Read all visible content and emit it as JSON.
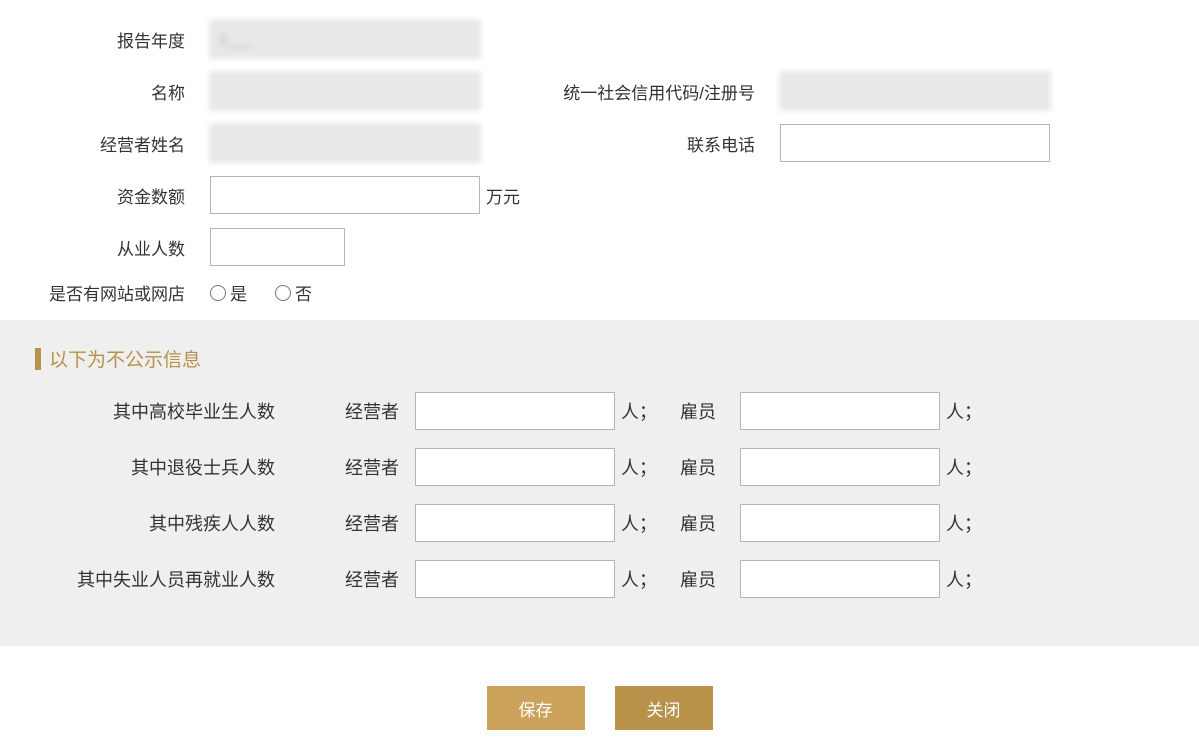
{
  "upper_form": {
    "report_year": {
      "label": "报告年度",
      "value": "2___"
    },
    "name": {
      "label": "名称",
      "value": ""
    },
    "credit_code": {
      "label": "统一社会信用代码/注册号",
      "value": ""
    },
    "operator_name": {
      "label": "经营者姓名",
      "value": ""
    },
    "phone": {
      "label": "联系电话",
      "value": ""
    },
    "capital": {
      "label": "资金数额",
      "value": "",
      "unit": "万元"
    },
    "employee_count": {
      "label": "从业人数",
      "value": ""
    },
    "has_website": {
      "label": "是否有网站或网店",
      "option_yes": "是",
      "option_no": "否"
    }
  },
  "non_public": {
    "section_title": "以下为不公示信息",
    "operator_label": "经营者",
    "employee_label": "雇员",
    "people_suffix": "人；",
    "rows": {
      "college": {
        "label": "其中高校毕业生人数",
        "operator_value": "",
        "employee_value": ""
      },
      "veteran": {
        "label": "其中退役士兵人数",
        "operator_value": "",
        "employee_value": ""
      },
      "disabled": {
        "label": "其中残疾人人数",
        "operator_value": "",
        "employee_value": ""
      },
      "reemployed": {
        "label": "其中失业人员再就业人数",
        "operator_value": "",
        "employee_value": ""
      }
    }
  },
  "buttons": {
    "save": "保存",
    "close": "关闭"
  },
  "styling": {
    "accent_color": "#b8914a",
    "btn_save_bg": "#cba35c",
    "btn_close_bg": "#b8914a",
    "section_bg": "#efefef",
    "readonly_bg": "#e8e8e8",
    "input_border": "#b5b5b5",
    "text_color": "#333333",
    "font_family": "Microsoft YaHei",
    "label_fontsize": 17,
    "section_title_fontsize": 19
  }
}
